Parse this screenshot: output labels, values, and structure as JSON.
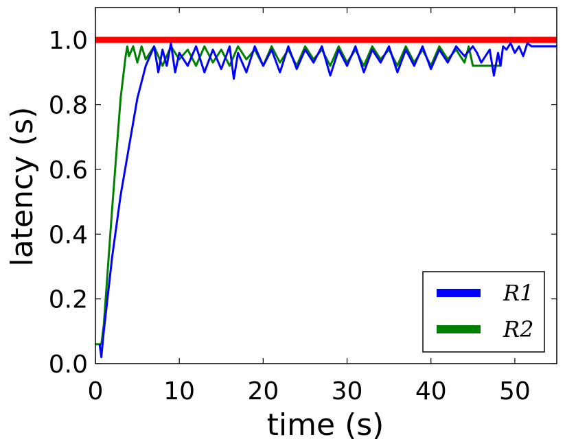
{
  "chart_data": {
    "type": "line",
    "xlabel": "time (s)",
    "ylabel": "latency (s)",
    "xlim": [
      0,
      55
    ],
    "ylim": [
      0.0,
      1.1
    ],
    "xticks": [
      "0",
      "10",
      "20",
      "30",
      "40",
      "50"
    ],
    "yticks": [
      "0.0",
      "0.2",
      "0.4",
      "0.6",
      "0.8",
      "1.0"
    ],
    "grid": false,
    "legend_position": "bottom-right",
    "colors": {
      "R1": "#0000ff",
      "R2": "#008000",
      "reference": "#ff0000"
    },
    "reference_line": {
      "y": 1.0
    },
    "series": [
      {
        "name": "R1",
        "x": [
          0.5,
          0.7,
          1.0,
          2.0,
          3.0,
          4.0,
          5.0,
          6.0,
          6.5,
          7.0,
          7.5,
          8.0,
          8.5,
          9.0,
          9.5,
          10.0,
          11.0,
          12.0,
          13.0,
          14.0,
          15.0,
          16.0,
          16.5,
          17.0,
          18.0,
          19.0,
          20.0,
          21.0,
          22.0,
          23.0,
          24.0,
          25.0,
          26.0,
          27.0,
          28.0,
          29.0,
          30.0,
          31.0,
          32.0,
          33.0,
          34.0,
          35.0,
          36.0,
          37.0,
          38.0,
          39.0,
          40.0,
          41.0,
          42.0,
          43.0,
          44.0,
          45.0,
          45.5,
          46.0,
          47.0,
          47.5,
          48.0,
          48.3,
          48.6,
          49.0,
          49.5,
          50.0,
          50.5,
          51.0,
          51.5,
          52.0,
          55.0
        ],
        "values": [
          0.06,
          0.02,
          0.1,
          0.33,
          0.52,
          0.67,
          0.82,
          0.92,
          0.95,
          0.98,
          0.9,
          0.97,
          0.92,
          0.99,
          0.9,
          0.96,
          0.92,
          0.98,
          0.9,
          0.97,
          0.91,
          0.98,
          0.88,
          0.96,
          0.9,
          0.98,
          0.92,
          0.97,
          0.9,
          0.98,
          0.91,
          0.97,
          0.93,
          0.98,
          0.89,
          0.97,
          0.92,
          0.98,
          0.9,
          0.97,
          0.93,
          0.98,
          0.9,
          0.97,
          0.92,
          0.98,
          0.91,
          0.97,
          0.93,
          0.98,
          0.95,
          0.98,
          0.96,
          0.93,
          0.97,
          0.89,
          0.96,
          0.92,
          0.98,
          0.97,
          0.99,
          0.96,
          0.98,
          0.95,
          0.99,
          0.98,
          0.98
        ]
      },
      {
        "name": "R2",
        "x": [
          0.0,
          0.7,
          1.0,
          2.0,
          3.0,
          3.6,
          3.8,
          4.0,
          4.5,
          5.0,
          5.5,
          6.0,
          7.0,
          8.0,
          9.0,
          10.0,
          11.0,
          12.0,
          13.0,
          14.0,
          15.0,
          16.0,
          17.0,
          18.0,
          19.0,
          20.0,
          21.0,
          22.0,
          23.0,
          24.0,
          25.0,
          26.0,
          27.0,
          28.0,
          29.0,
          30.0,
          31.0,
          32.0,
          33.0,
          34.0,
          35.0,
          36.0,
          37.0,
          38.0,
          39.0,
          40.0,
          41.0,
          42.0,
          43.0,
          44.0,
          44.5,
          45.0,
          48.2
        ],
        "values": [
          0.06,
          0.06,
          0.12,
          0.48,
          0.82,
          0.95,
          0.98,
          0.95,
          0.98,
          0.93,
          0.98,
          0.94,
          0.98,
          0.92,
          0.98,
          0.94,
          0.97,
          0.92,
          0.98,
          0.93,
          0.97,
          0.92,
          0.98,
          0.94,
          0.97,
          0.92,
          0.98,
          0.93,
          0.97,
          0.92,
          0.98,
          0.94,
          0.97,
          0.92,
          0.98,
          0.93,
          0.97,
          0.92,
          0.98,
          0.94,
          0.97,
          0.92,
          0.98,
          0.93,
          0.97,
          0.92,
          0.98,
          0.94,
          0.97,
          0.93,
          0.98,
          0.92,
          0.92
        ]
      }
    ]
  }
}
